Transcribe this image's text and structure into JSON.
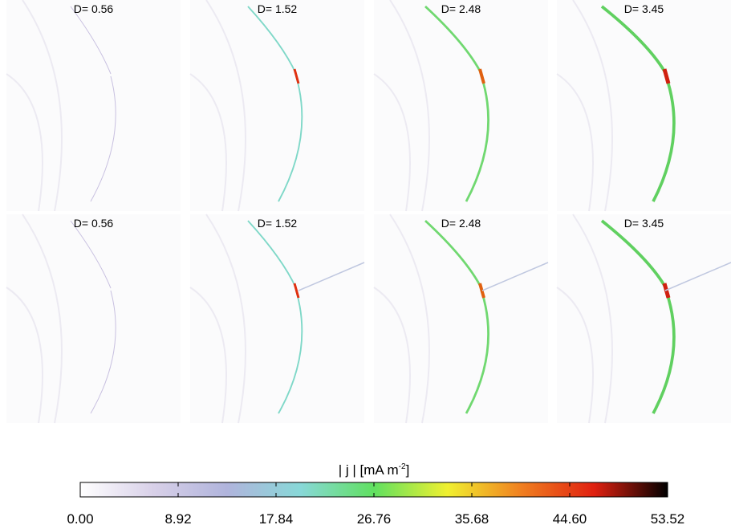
{
  "panels": [
    {
      "label": "D=  0.56"
    },
    {
      "label": "D=  1.52"
    },
    {
      "label": "D=  2.48"
    },
    {
      "label": "D=  3.45"
    },
    {
      "label": "D=  0.56"
    },
    {
      "label": "D=  1.52"
    },
    {
      "label": "D=  2.48"
    },
    {
      "label": "D=  3.45"
    }
  ],
  "colorbar": {
    "label": "| j | [mA m",
    "label_sup": "-2",
    "label_end": "]",
    "lim": [
      0,
      53.52
    ],
    "ticks": [
      {
        "value": 0,
        "label": "0.00"
      },
      {
        "value": 8.92,
        "label": "8.92"
      },
      {
        "value": 17.84,
        "label": "17.84"
      },
      {
        "value": 26.76,
        "label": "26.76"
      },
      {
        "value": 35.68,
        "label": "35.68"
      },
      {
        "value": 44.6,
        "label": "44.60"
      },
      {
        "value": 53.52,
        "label": "53.52"
      }
    ],
    "colors": [
      "#ffffff",
      "#d8d0e8",
      "#b0b4dc",
      "#88d8d8",
      "#60e060",
      "#f0f030",
      "#f08020",
      "#e02010",
      "#000000"
    ]
  }
}
